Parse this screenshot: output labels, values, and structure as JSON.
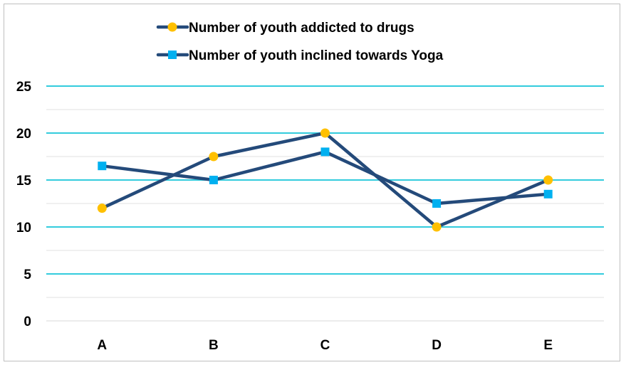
{
  "chart_data": {
    "type": "line",
    "categories": [
      "A",
      "B",
      "C",
      "D",
      "E"
    ],
    "series": [
      {
        "name": "Number of youth addicted to drugs",
        "values": [
          12,
          17.5,
          20,
          10,
          15
        ],
        "line_color": "#244A7A",
        "marker": "circle",
        "marker_color": "#FFC000"
      },
      {
        "name": "Number of youth inclined towards Yoga",
        "values": [
          16.5,
          15,
          18,
          12.5,
          13.5
        ],
        "line_color": "#244A7A",
        "marker": "square",
        "marker_color": "#00B0F0"
      }
    ],
    "y_ticks": [
      "0",
      "5",
      "10",
      "15",
      "20",
      "25"
    ],
    "ylim": [
      0,
      25
    ],
    "major_gridline_color": "#33CCDD",
    "minor_gridline_color": "#E0E0E0",
    "grid": true,
    "legend_position": "top"
  }
}
